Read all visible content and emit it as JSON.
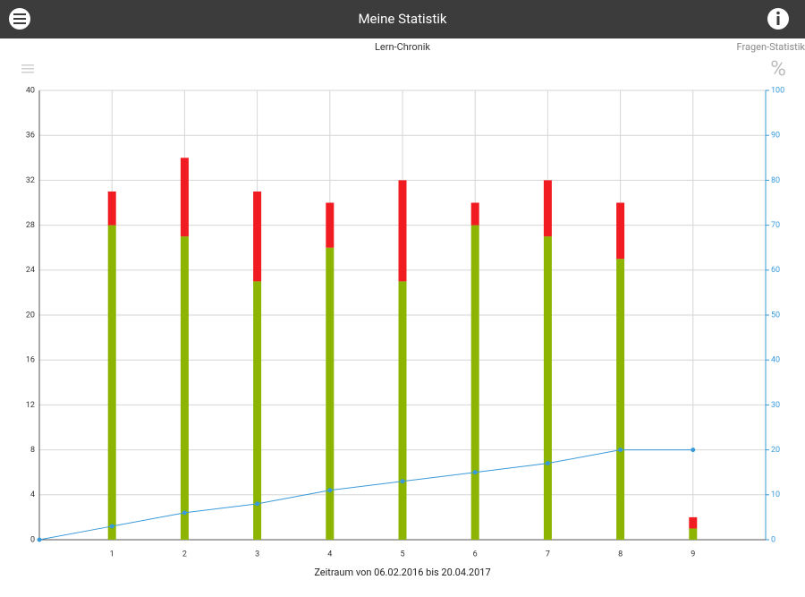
{
  "header": {
    "title": "Meine Statistik"
  },
  "tabs": [
    {
      "label": "Lern-Chronik"
    },
    {
      "label": "Fragen-Statistik",
      "icon": "%"
    }
  ],
  "chart_data": {
    "type": "bar",
    "xlabel": "Zeitraum von 06.02.2016 bis 20.04.2017",
    "x": [
      0,
      1,
      2,
      3,
      4,
      5,
      6,
      7,
      8,
      9
    ],
    "xlim": [
      0,
      10
    ],
    "xticks": [
      1,
      2,
      3,
      4,
      5,
      6,
      7,
      8,
      9
    ],
    "ylim": [
      0,
      40
    ],
    "yticks": [
      0,
      4,
      8,
      12,
      16,
      20,
      24,
      28,
      32,
      36,
      40
    ],
    "y2lim": [
      0,
      100
    ],
    "y2ticks": [
      0,
      10,
      20,
      30,
      40,
      50,
      60,
      70,
      80,
      90,
      100
    ],
    "grid": true,
    "stacked": true,
    "series": [
      {
        "color": "#8cb400",
        "values": [
          null,
          28,
          27,
          23,
          26,
          23,
          28,
          27,
          25,
          1
        ]
      },
      {
        "color": "#f01c22",
        "values": [
          null,
          3,
          7,
          8,
          4,
          9,
          2,
          5,
          5,
          1
        ]
      },
      {
        "type": "line",
        "axis": "y2",
        "color": "#3a9ad9",
        "values": [
          0,
          3,
          6,
          8,
          11,
          13,
          15,
          17,
          20,
          20
        ]
      }
    ]
  }
}
